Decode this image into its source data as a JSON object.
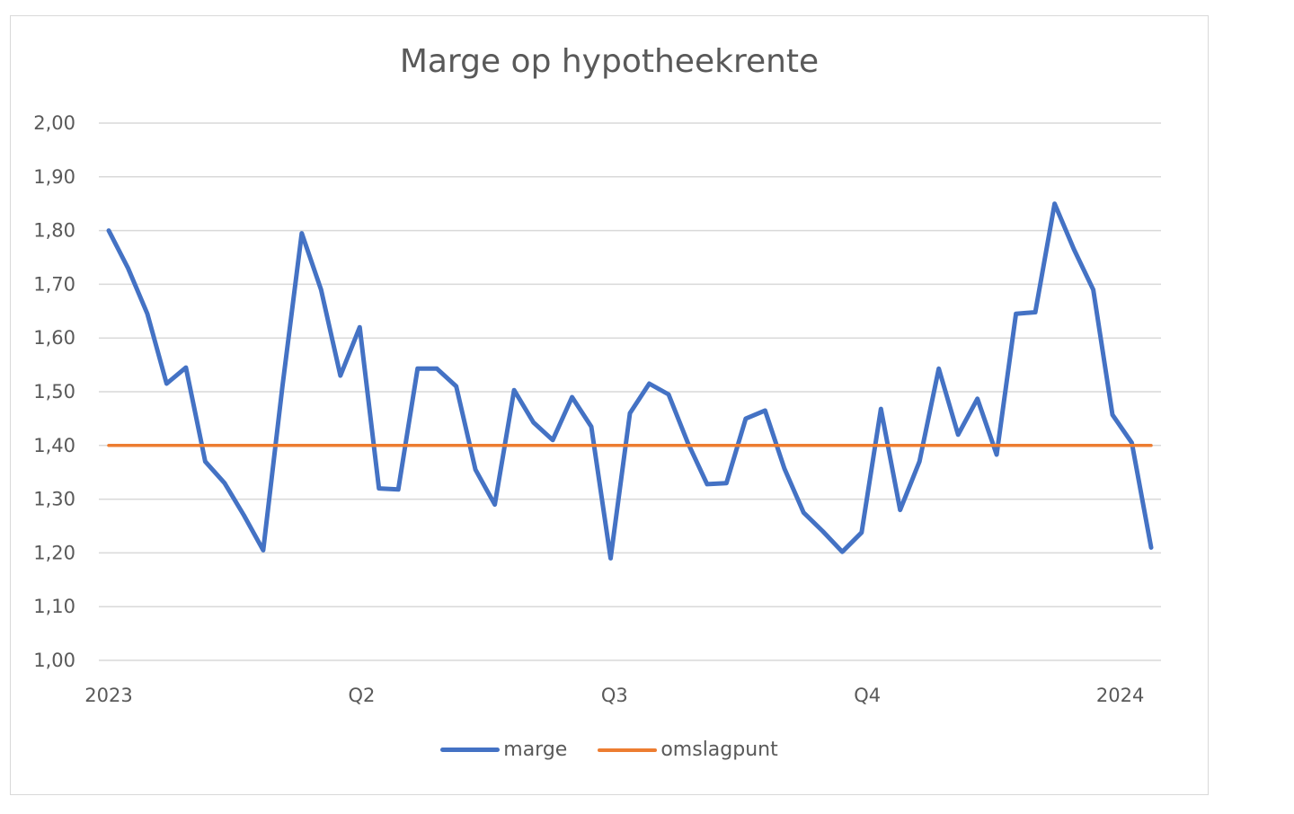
{
  "chart_data": {
    "type": "line",
    "title": "Marge op hypotheekrente",
    "xlabel": "",
    "ylabel": "",
    "ylim": [
      1.0,
      2.0
    ],
    "yticks": [
      "1,00",
      "1,10",
      "1,20",
      "1,30",
      "1,40",
      "1,50",
      "1,60",
      "1,70",
      "1,80",
      "1,90",
      "2,00"
    ],
    "xticks": [
      "2023",
      "Q2",
      "Q3",
      "Q4",
      "2024"
    ],
    "grid": true,
    "legend_position": "bottom",
    "series": [
      {
        "name": "marge",
        "color": "#4472c4",
        "values": [
          1.8,
          1.73,
          1.645,
          1.515,
          1.545,
          1.37,
          1.33,
          1.27,
          1.205,
          1.51,
          1.795,
          1.69,
          1.53,
          1.62,
          1.32,
          1.318,
          1.543,
          1.543,
          1.51,
          1.355,
          1.29,
          1.503,
          1.443,
          1.41,
          1.49,
          1.435,
          1.19,
          1.46,
          1.515,
          1.495,
          1.405,
          1.328,
          1.33,
          1.45,
          1.465,
          1.357,
          1.275,
          1.24,
          1.202,
          1.238,
          1.468,
          1.28,
          1.37,
          1.543,
          1.42,
          1.487,
          1.383,
          1.645,
          1.648,
          1.85,
          1.765,
          1.69,
          1.457,
          1.405,
          1.21
        ]
      },
      {
        "name": "omslagpunt",
        "color": "#ed7d31",
        "values": [
          1.4,
          1.4,
          1.4,
          1.4,
          1.4,
          1.4,
          1.4,
          1.4,
          1.4,
          1.4,
          1.4,
          1.4,
          1.4,
          1.4,
          1.4,
          1.4,
          1.4,
          1.4,
          1.4,
          1.4,
          1.4,
          1.4,
          1.4,
          1.4,
          1.4,
          1.4,
          1.4,
          1.4,
          1.4,
          1.4,
          1.4,
          1.4,
          1.4,
          1.4,
          1.4,
          1.4,
          1.4,
          1.4,
          1.4,
          1.4,
          1.4,
          1.4,
          1.4,
          1.4,
          1.4,
          1.4,
          1.4,
          1.4,
          1.4,
          1.4,
          1.4,
          1.4,
          1.4,
          1.4,
          1.4
        ]
      }
    ]
  }
}
